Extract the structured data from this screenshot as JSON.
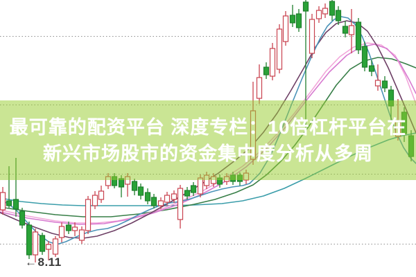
{
  "overlay": {
    "line1": "最可靠的配资平台 深度专栏：10倍杠杆平台在",
    "line2": "新兴市场股市的资金集中度分析从多周",
    "background_color": "rgba(154,205,50,0.52)",
    "text_color": "#ffffff"
  },
  "chart_data": {
    "type": "candlestick",
    "title": "",
    "xlabel": "",
    "ylabel": "",
    "legend": "none",
    "grid": {
      "on": true,
      "style": "dotted",
      "color": "#8c8c8c",
      "y_lines": [
        52.5,
        151.5,
        251.5,
        352.5
      ]
    },
    "up_color": "#c8414e",
    "up_fill": "#ffffff",
    "down_color": "#2aa238",
    "down_stroke": "#1e7e2c",
    "low_annotation": {
      "arrow": "←",
      "value": "8.11",
      "color": "#383838"
    },
    "candles": [
      [
        4,
        278,
        303,
        270,
        310,
        "r"
      ],
      [
        13,
        290,
        297,
        240,
        300,
        "g"
      ],
      [
        23,
        288,
        302,
        228,
        313,
        "g"
      ],
      [
        32,
        305,
        325,
        300,
        330,
        "g"
      ],
      [
        42,
        325,
        368,
        320,
        374,
        "g"
      ],
      [
        51,
        335,
        368,
        330,
        379,
        "r"
      ],
      [
        61,
        340,
        363,
        336,
        368,
        "g"
      ],
      [
        70,
        353,
        360,
        348,
        376,
        "r"
      ],
      [
        80,
        345,
        367,
        341,
        371,
        "r"
      ],
      [
        89,
        327,
        343,
        321,
        350,
        "r"
      ],
      [
        99,
        325,
        333,
        320,
        338,
        "g"
      ],
      [
        108,
        328,
        333,
        321,
        341,
        "r"
      ],
      [
        118,
        332,
        347,
        327,
        352,
        "r"
      ],
      [
        127,
        288,
        333,
        283,
        338,
        "r"
      ],
      [
        137,
        282,
        297,
        276,
        302,
        "r"
      ],
      [
        146,
        276,
        288,
        268,
        293,
        "r"
      ],
      [
        156,
        255,
        268,
        250,
        273,
        "r"
      ],
      [
        165,
        255,
        268,
        250,
        272,
        "g"
      ],
      [
        175,
        258,
        270,
        253,
        285,
        "g"
      ],
      [
        184,
        255,
        266,
        250,
        284,
        "r"
      ],
      [
        194,
        262,
        275,
        258,
        282,
        "g"
      ],
      [
        203,
        270,
        282,
        265,
        288,
        "g"
      ],
      [
        213,
        278,
        290,
        272,
        295,
        "g"
      ],
      [
        222,
        285,
        297,
        280,
        301,
        "g"
      ],
      [
        232,
        290,
        297,
        285,
        302,
        "r"
      ],
      [
        241,
        282,
        292,
        277,
        297,
        "r"
      ],
      [
        251,
        280,
        288,
        275,
        293,
        "r"
      ],
      [
        260,
        272,
        317,
        267,
        330,
        "r"
      ],
      [
        270,
        275,
        283,
        270,
        288,
        "g"
      ],
      [
        279,
        268,
        278,
        263,
        283,
        "g"
      ],
      [
        289,
        257,
        280,
        252,
        285,
        "r"
      ],
      [
        298,
        253,
        268,
        248,
        273,
        "r"
      ],
      [
        308,
        255,
        265,
        250,
        270,
        "r"
      ],
      [
        317,
        257,
        266,
        252,
        271,
        "g"
      ],
      [
        327,
        255,
        262,
        250,
        267,
        "r"
      ],
      [
        336,
        253,
        262,
        248,
        267,
        "g"
      ],
      [
        346,
        253,
        262,
        249,
        268,
        "g"
      ],
      [
        355,
        250,
        260,
        245,
        266,
        "r"
      ],
      [
        365,
        160,
        230,
        118,
        238,
        "r"
      ],
      [
        374,
        112,
        142,
        93,
        150,
        "r"
      ],
      [
        384,
        97,
        108,
        90,
        114,
        "g"
      ],
      [
        393,
        70,
        110,
        62,
        116,
        "r"
      ],
      [
        403,
        42,
        100,
        35,
        106,
        "r"
      ],
      [
        412,
        23,
        60,
        16,
        66,
        "r"
      ],
      [
        422,
        22,
        33,
        7,
        39,
        "g"
      ],
      [
        431,
        20,
        40,
        13,
        46,
        "g"
      ],
      [
        441,
        3,
        16,
        0,
        193,
        "g"
      ],
      [
        450,
        28,
        77,
        20,
        84,
        "r"
      ],
      [
        460,
        15,
        27,
        9,
        33,
        "r"
      ],
      [
        469,
        12,
        20,
        5,
        26,
        "r"
      ],
      [
        479,
        2,
        22,
        0,
        30,
        "g"
      ],
      [
        488,
        15,
        30,
        9,
        36,
        "g"
      ],
      [
        498,
        38,
        48,
        30,
        54,
        "g"
      ],
      [
        507,
        37,
        50,
        13,
        77,
        "r"
      ],
      [
        517,
        32,
        72,
        26,
        78,
        "g"
      ],
      [
        526,
        67,
        97,
        60,
        103,
        "g"
      ],
      [
        536,
        95,
        103,
        87,
        110,
        "g"
      ],
      [
        545,
        116,
        124,
        93,
        131,
        "r"
      ],
      [
        555,
        117,
        127,
        110,
        133,
        "g"
      ],
      [
        564,
        130,
        153,
        124,
        174,
        "g"
      ],
      [
        574,
        175,
        197,
        143,
        203,
        "r"
      ],
      [
        583,
        162,
        193,
        155,
        205,
        "g"
      ],
      [
        593,
        196,
        226,
        188,
        233,
        "g"
      ]
    ],
    "ma_lines": [
      {
        "name": "ma-long-teal",
        "color": "#3a9daa",
        "points": [
          [
            0,
            286
          ],
          [
            30,
            291
          ],
          [
            60,
            294
          ],
          [
            90,
            296
          ],
          [
            120,
            297
          ],
          [
            160,
            297
          ],
          [
            200,
            297
          ],
          [
            240,
            297
          ],
          [
            280,
            296
          ],
          [
            320,
            294
          ],
          [
            350,
            290
          ],
          [
            380,
            283
          ],
          [
            410,
            272
          ],
          [
            440,
            258
          ],
          [
            470,
            243
          ],
          [
            500,
            228
          ],
          [
            530,
            214
          ],
          [
            560,
            202
          ],
          [
            580,
            196
          ],
          [
            600,
            192
          ]
        ]
      },
      {
        "name": "ma-mid-green",
        "color": "#377e47",
        "points": [
          [
            0,
            299
          ],
          [
            40,
            305
          ],
          [
            80,
            310
          ],
          [
            120,
            313
          ],
          [
            160,
            313
          ],
          [
            200,
            309
          ],
          [
            240,
            303
          ],
          [
            280,
            295
          ],
          [
            310,
            288
          ],
          [
            340,
            278
          ],
          [
            365,
            267
          ],
          [
            385,
            252
          ],
          [
            405,
            233
          ],
          [
            425,
            210
          ],
          [
            445,
            183
          ],
          [
            465,
            153
          ],
          [
            485,
            123
          ],
          [
            505,
            100
          ],
          [
            525,
            88
          ],
          [
            545,
            83
          ],
          [
            565,
            85
          ],
          [
            585,
            92
          ],
          [
            600,
            98
          ]
        ]
      },
      {
        "name": "ma-pink",
        "color": "#f2a6da",
        "points": [
          [
            0,
            303
          ],
          [
            40,
            312
          ],
          [
            80,
            319
          ],
          [
            110,
            322
          ],
          [
            140,
            322
          ],
          [
            170,
            319
          ],
          [
            200,
            312
          ],
          [
            230,
            303
          ],
          [
            260,
            291
          ],
          [
            290,
            277
          ],
          [
            320,
            260
          ],
          [
            350,
            240
          ],
          [
            375,
            219
          ],
          [
            400,
            193
          ],
          [
            425,
            163
          ],
          [
            450,
            130
          ],
          [
            470,
            103
          ],
          [
            490,
            82
          ],
          [
            510,
            68
          ],
          [
            530,
            62
          ],
          [
            550,
            65
          ],
          [
            570,
            80
          ],
          [
            585,
            110
          ],
          [
            600,
            150
          ]
        ]
      },
      {
        "name": "ma-orchid",
        "color": "#d77ad0",
        "points": [
          [
            0,
            306
          ],
          [
            40,
            315
          ],
          [
            80,
            321
          ],
          [
            115,
            324
          ],
          [
            150,
            323
          ],
          [
            185,
            317
          ],
          [
            220,
            308
          ],
          [
            255,
            296
          ],
          [
            290,
            281
          ],
          [
            325,
            262
          ],
          [
            355,
            241
          ],
          [
            385,
            214
          ],
          [
            415,
            180
          ],
          [
            445,
            141
          ],
          [
            475,
            104
          ],
          [
            500,
            80
          ],
          [
            520,
            68
          ],
          [
            540,
            64
          ],
          [
            558,
            70
          ],
          [
            575,
            88
          ],
          [
            590,
            115
          ],
          [
            600,
            135
          ]
        ]
      },
      {
        "name": "ma-plum",
        "color": "#6e4066",
        "points": [
          [
            0,
            307
          ],
          [
            25,
            318
          ],
          [
            50,
            328
          ],
          [
            75,
            337
          ],
          [
            100,
            343
          ],
          [
            120,
            344
          ],
          [
            140,
            341
          ],
          [
            165,
            333
          ],
          [
            190,
            322
          ],
          [
            215,
            309
          ],
          [
            240,
            295
          ],
          [
            265,
            281
          ],
          [
            290,
            266
          ],
          [
            315,
            250
          ],
          [
            340,
            231
          ],
          [
            360,
            214
          ],
          [
            380,
            191
          ],
          [
            400,
            163
          ],
          [
            420,
            130
          ],
          [
            440,
            95
          ],
          [
            455,
            68
          ],
          [
            470,
            47
          ],
          [
            485,
            34
          ],
          [
            500,
            30
          ],
          [
            515,
            33
          ],
          [
            530,
            45
          ],
          [
            545,
            68
          ],
          [
            560,
            98
          ],
          [
            575,
            133
          ],
          [
            590,
            168
          ],
          [
            600,
            192
          ]
        ]
      },
      {
        "name": "ma-fast-blue",
        "color": "#4a93b8",
        "points": [
          [
            0,
            289
          ],
          [
            12,
            294
          ],
          [
            25,
            305
          ],
          [
            40,
            322
          ],
          [
            55,
            338
          ],
          [
            70,
            349
          ],
          [
            82,
            353
          ],
          [
            95,
            349
          ],
          [
            110,
            342
          ],
          [
            125,
            336
          ],
          [
            140,
            332
          ],
          [
            155,
            330
          ],
          [
            170,
            325
          ],
          [
            185,
            318
          ],
          [
            200,
            310
          ],
          [
            215,
            303
          ],
          [
            230,
            297
          ],
          [
            245,
            293
          ],
          [
            260,
            291
          ],
          [
            275,
            287
          ],
          [
            290,
            282
          ],
          [
            305,
            277
          ],
          [
            320,
            273
          ],
          [
            335,
            270
          ],
          [
            350,
            268
          ],
          [
            360,
            265
          ],
          [
            375,
            250
          ],
          [
            390,
            225
          ],
          [
            405,
            190
          ],
          [
            420,
            152
          ],
          [
            435,
            115
          ],
          [
            450,
            80
          ],
          [
            462,
            55
          ],
          [
            472,
            38
          ],
          [
            482,
            28
          ],
          [
            492,
            24
          ],
          [
            502,
            26
          ],
          [
            512,
            35
          ],
          [
            522,
            52
          ],
          [
            532,
            76
          ],
          [
            542,
            105
          ],
          [
            552,
            135
          ],
          [
            562,
            165
          ],
          [
            572,
            192
          ],
          [
            582,
            213
          ],
          [
            592,
            228
          ],
          [
            600,
            236
          ]
        ]
      }
    ]
  }
}
